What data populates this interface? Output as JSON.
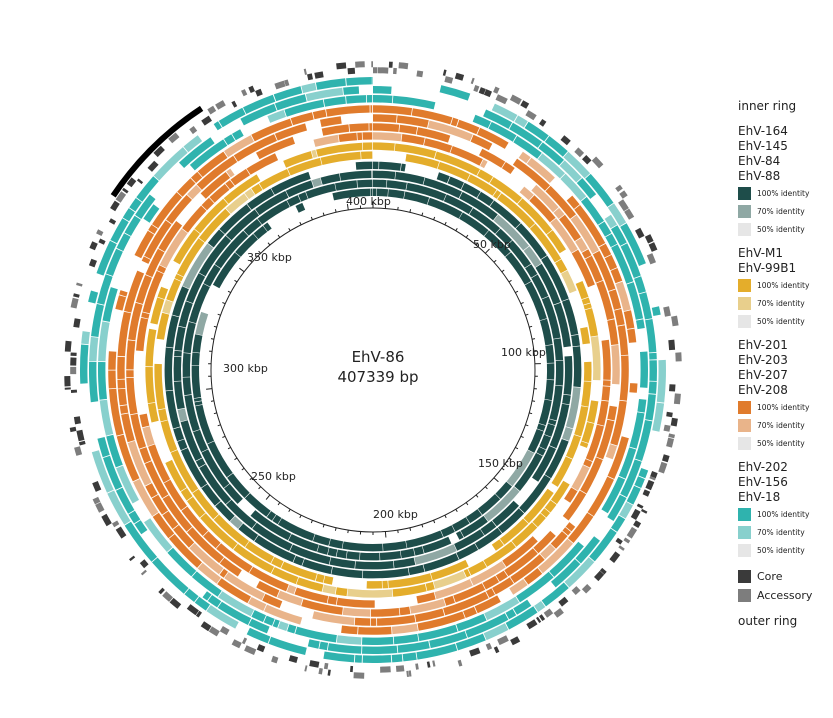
{
  "center": {
    "name": "EhV-86",
    "length": "407339 bp"
  },
  "axis_ticks": [
    "50 kbp",
    "100 kbp",
    "150 kbp",
    "200 kbp",
    "250 kbp",
    "300 kbp",
    "350 kbp",
    "400 kbp"
  ],
  "legend": {
    "inner_label": "inner ring",
    "outer_label": "outer ring",
    "groups": [
      {
        "strains": [
          "EhV-164",
          "EhV-145",
          "EhV-84",
          "EhV-88"
        ],
        "color": "#1e4d4a",
        "swatches": [
          {
            "label": "100% identity",
            "color": "#1e4d4a"
          },
          {
            "label": "70% identity",
            "color": "#8fa8a4"
          },
          {
            "label": "50% identity",
            "color": "#e6e6e6"
          }
        ]
      },
      {
        "strains": [
          "EhV-M1",
          "EhV-99B1"
        ],
        "color": "#e4ad2b",
        "swatches": [
          {
            "label": "100% identity",
            "color": "#e4ad2b"
          },
          {
            "label": "70% identity",
            "color": "#e8cf8c"
          },
          {
            "label": "50% identity",
            "color": "#e6e6e6"
          }
        ]
      },
      {
        "strains": [
          "EhV-201",
          "EhV-203",
          "EhV-207",
          "EhV-208"
        ],
        "color": "#e07b2c",
        "swatches": [
          {
            "label": "100% identity",
            "color": "#e07b2c"
          },
          {
            "label": "70% identity",
            "color": "#e9b48a"
          },
          {
            "label": "50% identity",
            "color": "#e6e6e6"
          }
        ]
      },
      {
        "strains": [
          "EhV-202",
          "EhV-156",
          "EhV-18"
        ],
        "color": "#2fb3ae",
        "swatches": [
          {
            "label": "100% identity",
            "color": "#2fb3ae"
          },
          {
            "label": "70% identity",
            "color": "#88d0cd"
          },
          {
            "label": "50% identity",
            "color": "#e6e6e6"
          }
        ]
      }
    ],
    "outer_keys": [
      {
        "label": "Core",
        "color": "#3a3a3a"
      },
      {
        "label": "Accessory",
        "color": "#7d7d7d"
      }
    ]
  }
}
